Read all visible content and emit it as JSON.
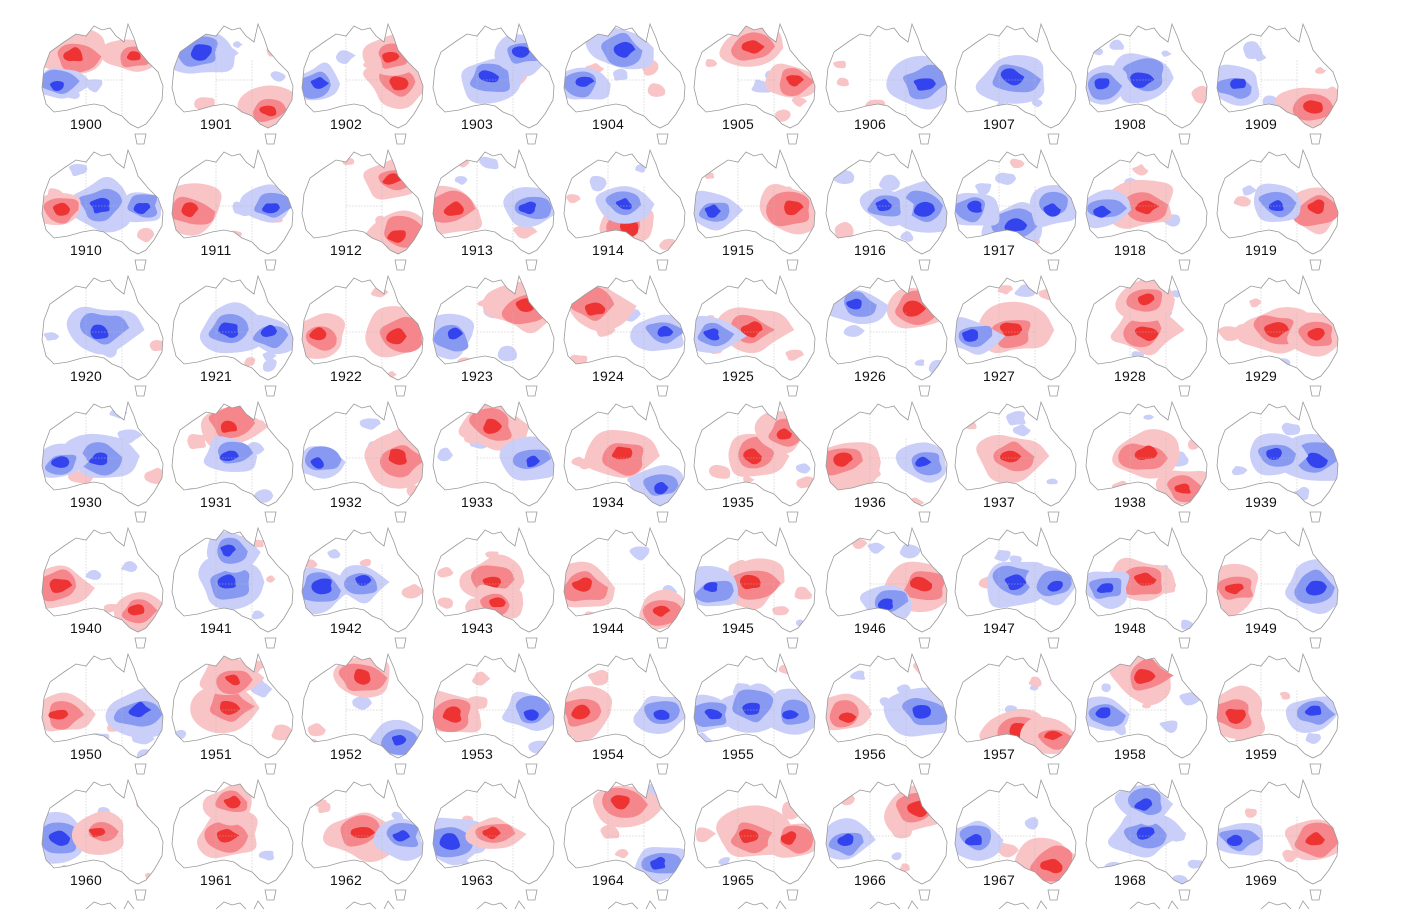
{
  "years": [
    [
      "1900",
      "1901",
      "1902",
      "1903",
      "1904",
      "1905",
      "1906",
      "1907",
      "1908",
      "1909"
    ],
    [
      "1910",
      "1911",
      "1912",
      "1913",
      "1914",
      "1915",
      "1916",
      "1917",
      "1918",
      "1919"
    ],
    [
      "1920",
      "1921",
      "1922",
      "1923",
      "1924",
      "1925",
      "1926",
      "1927",
      "1928",
      "1929"
    ],
    [
      "1930",
      "1931",
      "1932",
      "1933",
      "1934",
      "1935",
      "1936",
      "1937",
      "1938",
      "1939"
    ],
    [
      "1940",
      "1941",
      "1942",
      "1943",
      "1944",
      "1945",
      "1946",
      "1947",
      "1948",
      "1949"
    ],
    [
      "1950",
      "1951",
      "1952",
      "1953",
      "1954",
      "1955",
      "1956",
      "1957",
      "1958",
      "1959"
    ],
    [
      "1960",
      "1961",
      "1962",
      "1963",
      "1964",
      "1965",
      "1966",
      "1967",
      "1968",
      "1969"
    ]
  ],
  "colors": {
    "strong_wet": "#3344ee",
    "moderate_wet": "#8899f2",
    "light_wet": "#c9cff8",
    "light_dry": "#f9c4c6",
    "moderate_dry": "#f5878c",
    "strong_dry": "#ee3333",
    "outline": "#9a9a9a",
    "label": "#111111"
  },
  "anomaly_patterns": [
    [
      [
        "dry",
        "nw"
      ],
      [
        "dry",
        "ne"
      ],
      [
        "wet",
        "w"
      ]
    ],
    [
      [
        "wet",
        "nw"
      ],
      [
        "dry",
        "se"
      ]
    ],
    [
      [
        "dry",
        "e"
      ],
      [
        "dry",
        "ne"
      ],
      [
        "wet",
        "w"
      ]
    ],
    [
      [
        "wet",
        "c"
      ],
      [
        "wet",
        "ne"
      ]
    ],
    [
      [
        "wet",
        "n"
      ],
      [
        "wet",
        "w"
      ]
    ],
    [
      [
        "dry",
        "n"
      ],
      [
        "dry",
        "e"
      ]
    ],
    [
      [
        "wet",
        "e"
      ]
    ],
    [
      [
        "wet",
        "c"
      ]
    ],
    [
      [
        "wet",
        "c"
      ],
      [
        "wet",
        "w"
      ]
    ],
    [
      [
        "dry",
        "se"
      ],
      [
        "wet",
        "w"
      ]
    ],
    [
      [
        "wet",
        "c"
      ],
      [
        "wet",
        "e"
      ],
      [
        "dry",
        "w"
      ]
    ],
    [
      [
        "dry",
        "w"
      ],
      [
        "wet",
        "e"
      ]
    ],
    [
      [
        "dry",
        "se"
      ],
      [
        "dry",
        "ne"
      ]
    ],
    [
      [
        "dry",
        "w"
      ],
      [
        "wet",
        "e"
      ]
    ],
    [
      [
        "dry",
        "s"
      ],
      [
        "wet",
        "c"
      ]
    ],
    [
      [
        "dry",
        "e"
      ],
      [
        "wet",
        "w"
      ]
    ],
    [
      [
        "wet",
        "e"
      ],
      [
        "wet",
        "c"
      ]
    ],
    [
      [
        "wet",
        "s"
      ],
      [
        "wet",
        "e"
      ],
      [
        "wet",
        "w"
      ]
    ],
    [
      [
        "dry",
        "c"
      ],
      [
        "wet",
        "w"
      ]
    ],
    [
      [
        "dry",
        "e"
      ],
      [
        "wet",
        "c"
      ]
    ],
    [
      [
        "wet",
        "c"
      ]
    ],
    [
      [
        "wet",
        "c"
      ],
      [
        "wet",
        "e"
      ]
    ],
    [
      [
        "dry",
        "e"
      ],
      [
        "dry",
        "w"
      ]
    ],
    [
      [
        "dry",
        "ne"
      ],
      [
        "wet",
        "w"
      ]
    ],
    [
      [
        "dry",
        "nw"
      ],
      [
        "wet",
        "e"
      ]
    ],
    [
      [
        "dry",
        "c"
      ],
      [
        "wet",
        "w"
      ]
    ],
    [
      [
        "dry",
        "ne"
      ],
      [
        "wet",
        "nw"
      ]
    ],
    [
      [
        "dry",
        "c"
      ],
      [
        "wet",
        "w"
      ]
    ],
    [
      [
        "dry",
        "c"
      ],
      [
        "dry",
        "n"
      ]
    ],
    [
      [
        "dry",
        "c"
      ],
      [
        "dry",
        "e"
      ]
    ],
    [
      [
        "wet",
        "c"
      ],
      [
        "wet",
        "w"
      ]
    ],
    [
      [
        "dry",
        "n"
      ],
      [
        "wet",
        "c"
      ]
    ],
    [
      [
        "dry",
        "e"
      ],
      [
        "wet",
        "w"
      ]
    ],
    [
      [
        "dry",
        "n"
      ],
      [
        "wet",
        "e"
      ]
    ],
    [
      [
        "dry",
        "c"
      ],
      [
        "wet",
        "se"
      ]
    ],
    [
      [
        "dry",
        "c"
      ],
      [
        "dry",
        "ne"
      ]
    ],
    [
      [
        "dry",
        "w"
      ],
      [
        "wet",
        "e"
      ]
    ],
    [
      [
        "dry",
        "c"
      ]
    ],
    [
      [
        "dry",
        "c"
      ],
      [
        "dry",
        "se"
      ]
    ],
    [
      [
        "wet",
        "e"
      ],
      [
        "wet",
        "c"
      ]
    ],
    [
      [
        "dry",
        "w"
      ],
      [
        "dry",
        "se"
      ]
    ],
    [
      [
        "wet",
        "c"
      ],
      [
        "wet",
        "n"
      ]
    ],
    [
      [
        "wet",
        "w"
      ],
      [
        "wet",
        "c"
      ]
    ],
    [
      [
        "dry",
        "c"
      ],
      [
        "dry",
        "s"
      ]
    ],
    [
      [
        "dry",
        "w"
      ],
      [
        "dry",
        "se"
      ]
    ],
    [
      [
        "dry",
        "c"
      ],
      [
        "wet",
        "w"
      ]
    ],
    [
      [
        "dry",
        "e"
      ],
      [
        "wet",
        "s"
      ]
    ],
    [
      [
        "wet",
        "c"
      ],
      [
        "wet",
        "e"
      ]
    ],
    [
      [
        "dry",
        "c"
      ],
      [
        "wet",
        "w"
      ]
    ],
    [
      [
        "wet",
        "e"
      ],
      [
        "dry",
        "w"
      ]
    ],
    [
      [
        "wet",
        "e"
      ],
      [
        "dry",
        "w"
      ]
    ],
    [
      [
        "dry",
        "c"
      ],
      [
        "dry",
        "n"
      ]
    ],
    [
      [
        "dry",
        "n"
      ],
      [
        "wet",
        "se"
      ]
    ],
    [
      [
        "dry",
        "w"
      ],
      [
        "wet",
        "e"
      ]
    ],
    [
      [
        "dry",
        "w"
      ],
      [
        "wet",
        "e"
      ]
    ],
    [
      [
        "wet",
        "c"
      ],
      [
        "wet",
        "e"
      ],
      [
        "wet",
        "w"
      ]
    ],
    [
      [
        "wet",
        "e"
      ],
      [
        "dry",
        "w"
      ]
    ],
    [
      [
        "dry",
        "s"
      ],
      [
        "dry",
        "se"
      ]
    ],
    [
      [
        "dry",
        "n"
      ],
      [
        "wet",
        "w"
      ]
    ],
    [
      [
        "dry",
        "w"
      ],
      [
        "wet",
        "e"
      ]
    ],
    [
      [
        "wet",
        "w"
      ],
      [
        "dry",
        "c"
      ]
    ],
    [
      [
        "dry",
        "c"
      ],
      [
        "dry",
        "n"
      ]
    ],
    [
      [
        "dry",
        "c"
      ],
      [
        "wet",
        "e"
      ]
    ],
    [
      [
        "wet",
        "w"
      ],
      [
        "dry",
        "c"
      ]
    ],
    [
      [
        "dry",
        "n"
      ],
      [
        "wet",
        "se"
      ]
    ],
    [
      [
        "dry",
        "c"
      ],
      [
        "dry",
        "e"
      ]
    ],
    [
      [
        "dry",
        "ne"
      ],
      [
        "wet",
        "w"
      ]
    ],
    [
      [
        "dry",
        "se"
      ],
      [
        "wet",
        "w"
      ]
    ],
    [
      [
        "wet",
        "c"
      ],
      [
        "wet",
        "n"
      ]
    ],
    [
      [
        "dry",
        "e"
      ],
      [
        "wet",
        "w"
      ]
    ]
  ]
}
